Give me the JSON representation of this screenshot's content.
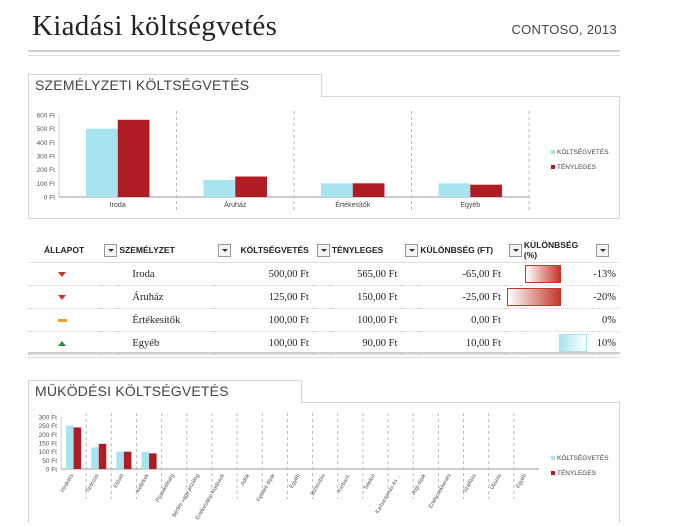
{
  "header": {
    "title": "Kiadási költségvetés",
    "company": "CONTOSO, 2013"
  },
  "personnel": {
    "section_title": "SZEMÉLYZETI KÖLTSÉGVETÉS",
    "table": {
      "headers": [
        "ÁLLAPOT",
        "SZEMÉLYZET",
        "KÖLTSÉGVETÉS",
        "TÉNYLEGES",
        "KÜLÖNBSÉG (FT)",
        "KÜLÖNBSÉG (%)"
      ],
      "rows": [
        {
          "status": "down",
          "name": "Iroda",
          "budget": "500,00 Ft",
          "actual": "565,00 Ft",
          "diff": "-65,00 Ft",
          "pct": "-13%",
          "pct_value": -13
        },
        {
          "status": "down",
          "name": "Áruház",
          "budget": "125,00 Ft",
          "actual": "150,00 Ft",
          "diff": "-25,00 Ft",
          "pct": "-20%",
          "pct_value": -20
        },
        {
          "status": "neutral",
          "name": "Értékesítők",
          "budget": "100,00 Ft",
          "actual": "100,00 Ft",
          "diff": "0,00 Ft",
          "pct": "0%",
          "pct_value": 0
        },
        {
          "status": "up",
          "name": "Egyéb",
          "budget": "100,00 Ft",
          "actual": "90,00 Ft",
          "diff": "10,00 Ft",
          "pct": "10%",
          "pct_value": 10
        }
      ]
    }
  },
  "operating": {
    "section_title": "MŰKÖDÉSI KÖLTSÉGVETÉS"
  },
  "colors": {
    "budget": "#a8e4ef",
    "actual": "#b01c24",
    "neg_bar": "#c0392b",
    "pos_bar": "#a8e4ef"
  },
  "chart_data": [
    {
      "type": "bar",
      "categories": [
        "Iroda",
        "Áruház",
        "Értékesítők",
        "Egyéb"
      ],
      "series": [
        {
          "name": "KÖLTSÉGVETÉS",
          "values": [
            500,
            125,
            100,
            100
          ]
        },
        {
          "name": "TÉNYLEGES",
          "values": [
            565,
            150,
            100,
            90
          ]
        }
      ],
      "ylim": [
        0,
        600
      ],
      "yticks": [
        "0 Ft",
        "100 Ft",
        "200 Ft",
        "300 Ft",
        "400 Ft",
        "500 Ft",
        "600 Ft"
      ],
      "legend": "right"
    },
    {
      "type": "bar",
      "categories": [
        "Hirdetés",
        "Tartozás",
        "Elővét",
        "Kellékek",
        "Postaköltség",
        "Bérlés vagy jelzálog",
        "Értékesítési kiadások",
        "Adók",
        "Felületi díjak",
        "Egyéb",
        "Biztosítás",
        "Karbant.",
        "Telefon",
        "Karbantartás és ...",
        "Jogi díjak",
        "Értékcsökkenés",
        "Szállítás",
        "Utazás",
        "Egyéb"
      ],
      "series": [
        {
          "name": "KÖLTSÉGVETÉS",
          "values": [
            250,
            125,
            100,
            100,
            0,
            0,
            0,
            0,
            0,
            0,
            0,
            0,
            0,
            0,
            0,
            0,
            0,
            0,
            0
          ]
        },
        {
          "name": "TÉNYLEGES",
          "values": [
            240,
            145,
            100,
            90,
            0,
            0,
            0,
            0,
            0,
            0,
            0,
            0,
            0,
            0,
            0,
            0,
            0,
            0,
            0
          ]
        }
      ],
      "ylim": [
        0,
        300
      ],
      "yticks": [
        "0 Ft",
        "50 Ft",
        "100 Ft",
        "150 Ft",
        "200 Ft",
        "250 Ft",
        "300 Ft"
      ],
      "legend": "right"
    }
  ]
}
